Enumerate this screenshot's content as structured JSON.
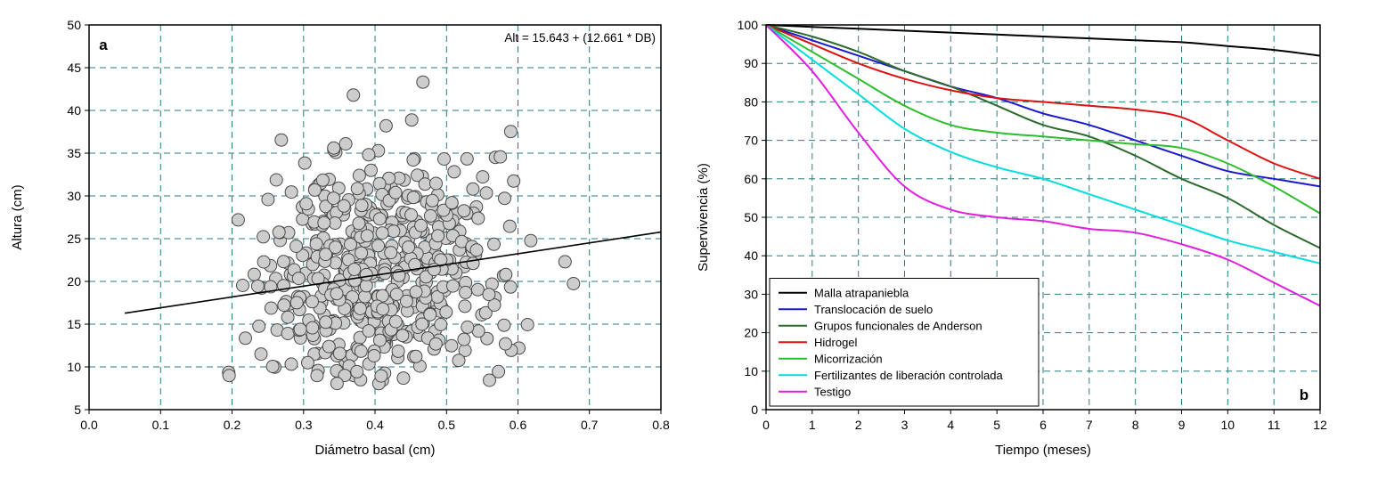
{
  "chart_data": [
    {
      "id": "a",
      "type": "scatter",
      "panel_label": "a",
      "xlabel": "Diámetro basal (cm)",
      "ylabel": "Altura (cm)",
      "xlim": [
        0.0,
        0.8
      ],
      "ylim": [
        5,
        50
      ],
      "x_ticks": [
        0.0,
        0.1,
        0.2,
        0.3,
        0.4,
        0.5,
        0.6,
        0.7,
        0.8
      ],
      "x_tick_labels": [
        "0.0",
        "0.1",
        "0.2",
        "0.3",
        "0.4",
        "0.5",
        "0.6",
        "0.7",
        "0.8"
      ],
      "y_ticks": [
        5,
        10,
        15,
        20,
        25,
        30,
        35,
        40,
        45,
        50
      ],
      "y_tick_labels": [
        "5",
        "10",
        "15",
        "20",
        "25",
        "30",
        "35",
        "40",
        "45",
        "50"
      ],
      "annotation": "Alt = 15.643 + (12.661 * DB)",
      "grid": true,
      "grid_color": "#2a7d7d",
      "regression": {
        "intercept": 15.643,
        "slope": 12.661,
        "x_start": 0.05,
        "x_end": 0.8
      },
      "scatter_params": {
        "n": 530,
        "seed": 20,
        "x_mean": 0.405,
        "x_sd": 0.085,
        "x_min": 0.195,
        "x_max": 0.745,
        "intercept": 15.643,
        "slope": 12.661,
        "residual_sd": 6.8,
        "y_min": 8,
        "y_max": 44.3
      },
      "point_style": {
        "fill": "#cdcdcd",
        "stroke": "#4a4a4a",
        "radius": 7
      }
    },
    {
      "id": "b",
      "type": "line",
      "panel_label": "b",
      "xlabel": "Tiempo (meses)",
      "ylabel": "Supervivencia (%)",
      "xlim": [
        0,
        12
      ],
      "ylim": [
        0,
        100
      ],
      "x_ticks": [
        0,
        1,
        2,
        3,
        4,
        5,
        6,
        7,
        8,
        9,
        10,
        11,
        12
      ],
      "x_tick_labels": [
        "0",
        "1",
        "2",
        "3",
        "4",
        "5",
        "6",
        "7",
        "8",
        "9",
        "10",
        "11",
        "12"
      ],
      "y_ticks": [
        0,
        10,
        20,
        30,
        40,
        50,
        60,
        70,
        80,
        90,
        100
      ],
      "y_tick_labels": [
        "0",
        "10",
        "20",
        "30",
        "40",
        "50",
        "60",
        "70",
        "80",
        "90",
        "100"
      ],
      "grid": true,
      "grid_color": "#2a7d7d",
      "legend_position": "lower left",
      "x": [
        0,
        1,
        2,
        3,
        4,
        5,
        6,
        7,
        8,
        9,
        10,
        11,
        12
      ],
      "series": [
        {
          "name": "Malla atrapaniebla",
          "color": "#000000",
          "values": [
            100,
            99.5,
            99,
            98.5,
            98,
            97.5,
            97,
            96.5,
            96,
            95.5,
            94.5,
            93.5,
            92
          ]
        },
        {
          "name": "Translocación de suelo",
          "color": "#1a1acc",
          "values": [
            100,
            96,
            92,
            88,
            84,
            81,
            77,
            74,
            70,
            66,
            62,
            60,
            58
          ]
        },
        {
          "name": "Grupos funcionales de Anderson",
          "color": "#2d6a2d",
          "values": [
            100,
            97,
            93,
            88,
            84,
            79,
            74,
            71,
            66,
            60,
            55,
            48,
            42
          ]
        },
        {
          "name": "Hidrogel",
          "color": "#dd1111",
          "values": [
            100,
            95,
            90,
            86,
            83,
            81,
            80,
            79,
            78,
            76,
            70,
            64,
            60
          ]
        },
        {
          "name": "Micorrización",
          "color": "#2dbe2d",
          "values": [
            100,
            93,
            86,
            79,
            74,
            72,
            71,
            70,
            69,
            68,
            64,
            58,
            51
          ]
        },
        {
          "name": "Fertilizantes de liberación controlada",
          "color": "#00dddd",
          "values": [
            100,
            91,
            82,
            73,
            67,
            63,
            60,
            56,
            52,
            48,
            44,
            41,
            38
          ]
        },
        {
          "name": "Testigo",
          "color": "#e020e0",
          "values": [
            100,
            88,
            72,
            58,
            52,
            50,
            49,
            47,
            46,
            43,
            39,
            33,
            27
          ]
        }
      ]
    }
  ]
}
